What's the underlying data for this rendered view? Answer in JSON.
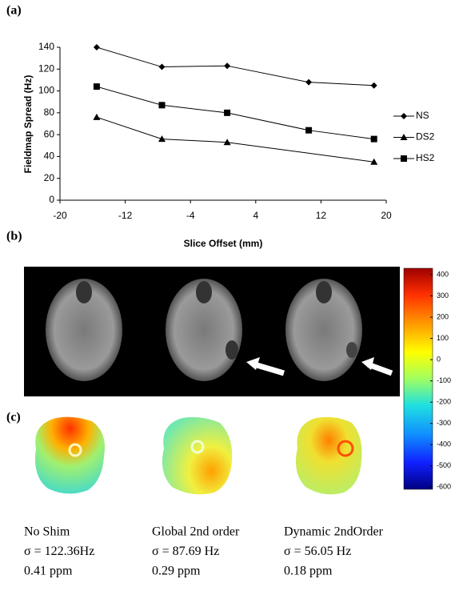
{
  "chart_data": {
    "type": "line",
    "panel_label": "(a)",
    "y_label": "Fieldmap Spread (Hz)",
    "x_label": "Slice Offset (mm)",
    "xlim": [
      -20,
      20
    ],
    "xticks": [
      -20,
      -12,
      -4,
      4,
      12,
      20
    ],
    "ylim": [
      0,
      140
    ],
    "yticks": [
      0,
      20,
      40,
      60,
      80,
      100,
      120,
      140
    ],
    "legend": "right",
    "series": [
      {
        "name": "NS",
        "color": "#000000",
        "marker": "diamond",
        "x": [
          -15.5,
          -7.5,
          0.5,
          10.5,
          18.5
        ],
        "values": [
          140,
          122,
          123,
          108,
          105
        ]
      },
      {
        "name": "DS2",
        "color": "#000000",
        "marker": "triangle",
        "x": [
          -15.5,
          -7.5,
          0.5,
          18.5
        ],
        "values": [
          76,
          56,
          53,
          35
        ]
      },
      {
        "name": "HS2",
        "color": "#000000",
        "marker": "square",
        "x": [
          -15.5,
          -7.5,
          0.5,
          10.5,
          18.5
        ],
        "values": [
          104,
          87,
          80,
          64,
          56
        ]
      }
    ]
  },
  "panel_b": {
    "label": "(b)"
  },
  "colorbar": {
    "ylim": [
      -610,
      430
    ],
    "yticks": [
      400,
      300,
      200,
      100,
      0,
      -100,
      -200,
      -300,
      -400,
      -500,
      -600
    ]
  },
  "panel_c": {
    "label": "(c)",
    "maps": [
      [
        "No Shim",
        "σ = 122.36Hz",
        "0.41 ppm"
      ],
      [
        "Global 2nd order",
        "σ = 87.69 Hz",
        "0.29 ppm"
      ],
      [
        "Dynamic 2ndOrder",
        "σ = 56.05 Hz",
        "0.18 ppm"
      ]
    ]
  }
}
